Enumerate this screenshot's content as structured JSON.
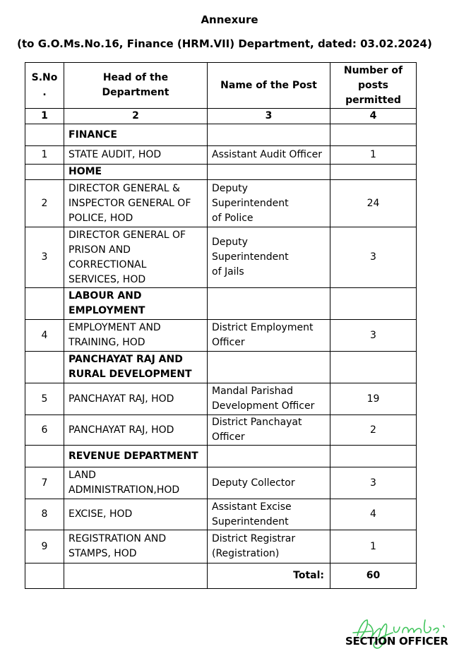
{
  "title": "Annexure",
  "subtitle": "(to G.O.Ms.No.16, Finance (HRM.VII) Department, dated: 03.02.2024)",
  "table": {
    "headers": [
      "S.No\n.",
      "Head of the\nDepartment",
      "Name of the Post",
      "Number of\nposts\npermitted"
    ],
    "col_numbers": [
      "1",
      "2",
      "3",
      "4"
    ],
    "rows": [
      {
        "type": "section",
        "head": "FINANCE"
      },
      {
        "type": "item",
        "sno": "1",
        "head": "STATE AUDIT, HOD",
        "post": "Assistant Audit Officer",
        "count": "1"
      },
      {
        "type": "section",
        "head": "HOME"
      },
      {
        "type": "item",
        "sno": "2",
        "head": "DIRECTOR  GENERAL &\nINSPECTOR GENERAL OF\nPOLICE, HOD",
        "post": "Deputy Superintendent\nof Police",
        "count": "24"
      },
      {
        "type": "item",
        "sno": "3",
        "head": "DIRECTOR GENERAL OF\nPRISON AND\nCORRECTIONAL\nSERVICES, HOD",
        "post": "Deputy Superintendent\nof Jails",
        "count": "3"
      },
      {
        "type": "section",
        "head": "LABOUR AND\nEMPLOYMENT"
      },
      {
        "type": "item",
        "sno": "4",
        "head": "EMPLOYMENT AND\nTRAINING, HOD",
        "post": "District Employment\nOfficer",
        "count": "3"
      },
      {
        "type": "section",
        "head": "PANCHAYAT RAJ AND\nRURAL DEVELOPMENT"
      },
      {
        "type": "item",
        "sno": "5",
        "head": "PANCHAYAT RAJ, HOD",
        "post": "Mandal Parishad\nDevelopment Officer",
        "count": "19"
      },
      {
        "type": "item",
        "sno": "6",
        "head": "PANCHAYAT RAJ, HOD",
        "post": "District Panchayat\nOfficer",
        "count": "2"
      },
      {
        "type": "section",
        "head": "REVENUE DEPARTMENT"
      },
      {
        "type": "item",
        "sno": "7",
        "head": "LAND\nADMINISTRATION,HOD",
        "post": "Deputy Collector",
        "count": "3"
      },
      {
        "type": "item",
        "sno": "8",
        "head": "EXCISE, HOD",
        "post": "Assistant Excise\nSuperintendent",
        "count": "4"
      },
      {
        "type": "item",
        "sno": "9",
        "head": "REGISTRATION AND\nSTAMPS, HOD",
        "post": "District Registrar\n(Registration)",
        "count": "1"
      }
    ],
    "total_label": "Total:",
    "total_value": "60"
  },
  "signature": {
    "designation": "SECTION OFFICER",
    "ink_color": "#3ec45a"
  }
}
